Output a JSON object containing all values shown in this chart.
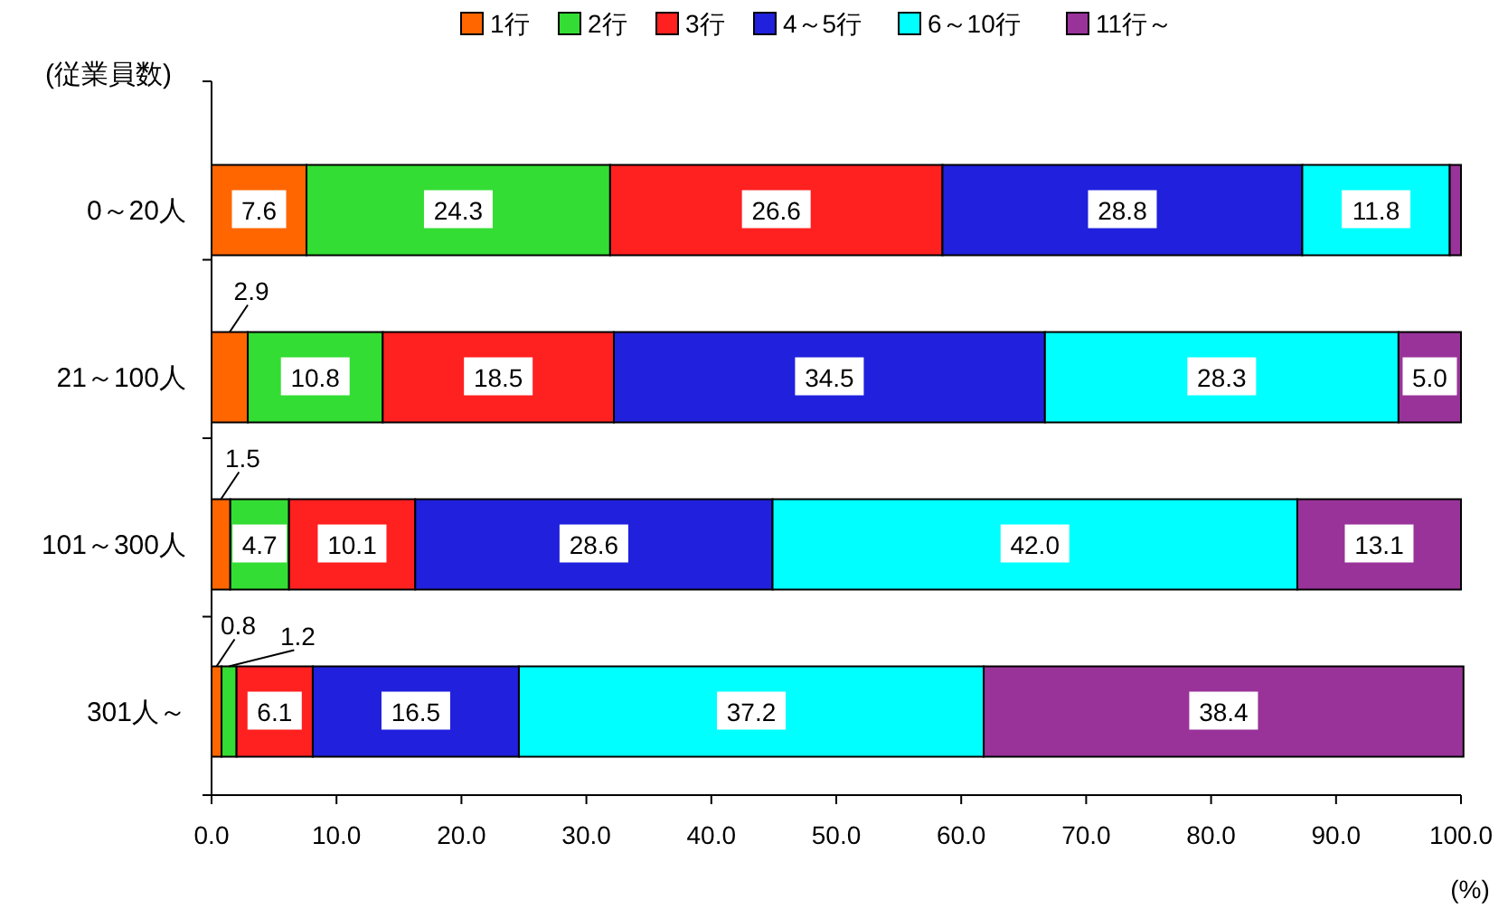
{
  "chart_data": {
    "type": "bar",
    "orientation": "horizontal",
    "stacked": true,
    "legend": "top",
    "ylabel": "(従業員数)",
    "xlabel": "(%)",
    "categories": [
      "0～20人",
      "21～100人",
      "101～300人",
      "301人～"
    ],
    "xlim": [
      0,
      100
    ],
    "xticks": [
      {
        "value": 0,
        "label": "0.0"
      },
      {
        "value": 10,
        "label": "10.0"
      },
      {
        "value": 20,
        "label": "20.0"
      },
      {
        "value": 30,
        "label": "30.0"
      },
      {
        "value": 40,
        "label": "40.0"
      },
      {
        "value": 50,
        "label": "50.0"
      },
      {
        "value": 60,
        "label": "60.0"
      },
      {
        "value": 70,
        "label": "70.0"
      },
      {
        "value": 80,
        "label": "80.0"
      },
      {
        "value": 90,
        "label": "90.0"
      },
      {
        "value": 100,
        "label": "100.0"
      }
    ],
    "series": [
      {
        "name": "1行",
        "color": "#ff6600",
        "values": [
          7.6,
          2.9,
          1.5,
          0.8
        ],
        "value_labels": [
          "7.6",
          "2.9",
          "1.5",
          "0.8"
        ]
      },
      {
        "name": "2行",
        "color": "#33dd33",
        "values": [
          24.3,
          10.8,
          4.7,
          1.2
        ],
        "value_labels": [
          "24.3",
          "10.8",
          "4.7",
          "1.2"
        ]
      },
      {
        "name": "3行",
        "color": "#ff2020",
        "values": [
          26.6,
          18.5,
          10.1,
          6.1
        ],
        "value_labels": [
          "26.6",
          "18.5",
          "10.1",
          "6.1"
        ]
      },
      {
        "name": "4～5行",
        "color": "#2020dd",
        "values": [
          28.8,
          34.5,
          28.6,
          16.5
        ],
        "value_labels": [
          "28.8",
          "34.5",
          "28.6",
          "16.5"
        ]
      },
      {
        "name": "6～10行",
        "color": "#00ffff",
        "values": [
          11.8,
          28.3,
          42.0,
          37.2
        ],
        "value_labels": [
          "11.8",
          "28.3",
          "42.0",
          "37.2"
        ]
      },
      {
        "name": "11行～",
        "color": "#993399",
        "values": [
          0.9,
          5.0,
          13.1,
          38.4
        ],
        "value_labels": [
          null,
          "5.0",
          "13.1",
          "38.4"
        ]
      }
    ]
  }
}
